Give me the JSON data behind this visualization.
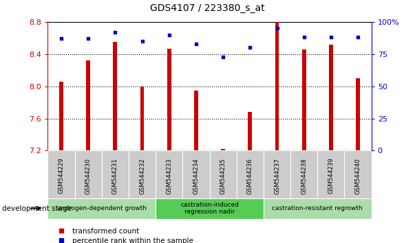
{
  "title": "GDS4107 / 223380_s_at",
  "samples": [
    "GSM544229",
    "GSM544230",
    "GSM544231",
    "GSM544232",
    "GSM544233",
    "GSM544234",
    "GSM544235",
    "GSM544236",
    "GSM544237",
    "GSM544238",
    "GSM544239",
    "GSM544240"
  ],
  "transformed_count": [
    8.06,
    8.32,
    8.55,
    8.0,
    8.47,
    7.95,
    7.22,
    7.68,
    8.8,
    8.46,
    8.52,
    8.1
  ],
  "percentile_rank": [
    87,
    87,
    92,
    85,
    90,
    83,
    73,
    80,
    95,
    88,
    88,
    88
  ],
  "ymin": 7.2,
  "ymax": 8.8,
  "yticks": [
    7.2,
    7.6,
    8.0,
    8.4,
    8.8
  ],
  "right_yticks": [
    0,
    25,
    50,
    75,
    100
  ],
  "bar_color": "#cc0000",
  "dot_color": "#0000cc",
  "stage_groups": [
    {
      "label": "androgen-dependent growth",
      "start": 0,
      "end": 3,
      "color": "#aaddaa"
    },
    {
      "label": "castration-induced\nregression nadir",
      "start": 4,
      "end": 7,
      "color": "#55cc55"
    },
    {
      "label": "castration-resistant regrowth",
      "start": 8,
      "end": 11,
      "color": "#aaddaa"
    }
  ],
  "legend_red_label": "transformed count",
  "legend_blue_label": "percentile rank within the sample",
  "dev_stage_label": "development stage",
  "tick_color_left": "#cc0000",
  "tick_color_right": "#0000cc",
  "gray_box_color": "#cccccc",
  "bar_width": 0.15
}
